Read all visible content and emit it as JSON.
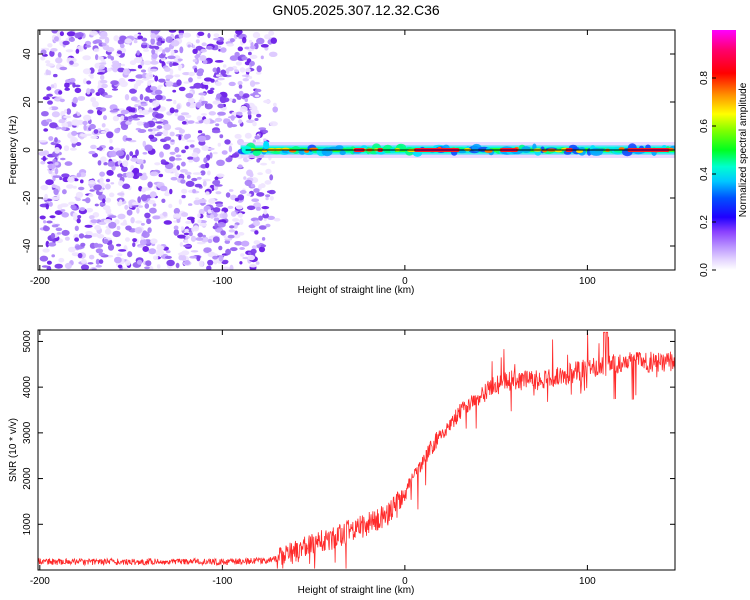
{
  "title": "GN05.2025.307.12.32.C36",
  "chart_data": [
    {
      "type": "heatmap",
      "name": "spectrogram",
      "xlabel": "Height of straight line (km)",
      "ylabel": "Frequency (Hz)",
      "xlim": [
        -201,
        148
      ],
      "ylim": [
        -50,
        50
      ],
      "xticks": [
        -200,
        -100,
        0,
        100
      ],
      "yticks": [
        40,
        20,
        0,
        -20,
        -40
      ],
      "noise_region_km": [
        -201,
        -72
      ],
      "signal_start_km": -90,
      "carrier_frequency_hz": 0,
      "carrier_hot_segments_km": [
        [
          -28,
          -22
        ],
        [
          -15,
          -12
        ],
        [
          5,
          30
        ],
        [
          52,
          62
        ],
        [
          88,
          92
        ],
        [
          122,
          145
        ]
      ],
      "colorbar": {
        "label": "Normalized spectral amplitude",
        "range": [
          0,
          1
        ],
        "ticks": [
          "0.0",
          "0.2",
          "0.4",
          "0.6",
          "0.8"
        ],
        "tick_values": [
          0.0,
          0.2,
          0.4,
          0.6,
          0.8
        ],
        "colors": [
          "#ffffff",
          "#c8a8ff",
          "#8c5cf2",
          "#5a00f0",
          "#0000ff",
          "#00bfff",
          "#00ffff",
          "#00ff00",
          "#80ff00",
          "#ffff00",
          "#ff8000",
          "#ff0000",
          "#ff0080",
          "#ff00ff"
        ]
      }
    },
    {
      "type": "line",
      "name": "snr",
      "xlabel": "Height of straight line (km)",
      "ylabel": "SNR (10 * v/v)",
      "xlim": [
        -201,
        148
      ],
      "ylim": [
        0,
        5250
      ],
      "xticks": [
        -200,
        -100,
        0,
        100
      ],
      "yticks": [
        1000,
        2000,
        3000,
        4000,
        5000
      ],
      "color": "#ff2a2a",
      "series": [
        {
          "name": "SNR trend",
          "x": [
            -201,
            -150,
            -100,
            -80,
            -70,
            -60,
            -50,
            -40,
            -30,
            -20,
            -10,
            0,
            10,
            20,
            30,
            40,
            50,
            60,
            70,
            80,
            90,
            100,
            110,
            120,
            130,
            140,
            148
          ],
          "y": [
            180,
            180,
            180,
            200,
            240,
            400,
            550,
            700,
            850,
            1000,
            1200,
            1700,
            2400,
            3000,
            3450,
            3800,
            4050,
            4150,
            4150,
            4200,
            4300,
            4400,
            4500,
            4550,
            4550,
            4550,
            4560
          ]
        }
      ]
    }
  ]
}
